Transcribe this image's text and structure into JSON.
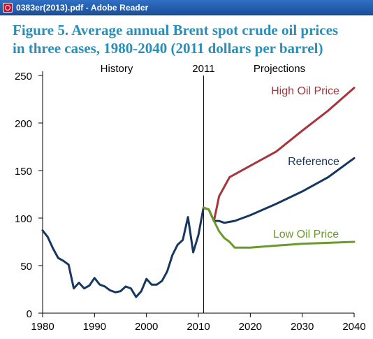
{
  "window": {
    "title": "0383er(2013).pdf - Adobe Reader",
    "icon": "pdf-document-icon"
  },
  "figure": {
    "title_line1": "Figure 5. Average annual Brent spot crude oil prices",
    "title_line2": "in three cases, 1980-2040 (2011 dollars per barrel)"
  },
  "chart_data": {
    "type": "line",
    "title": "Figure 5. Average annual Brent spot crude oil prices in three cases, 1980-2040 (2011 dollars per barrel)",
    "xlim": [
      1980,
      2040
    ],
    "ylim": [
      0,
      250
    ],
    "xticks": [
      1980,
      1990,
      2000,
      2010,
      2020,
      2030,
      2040
    ],
    "yticks": [
      0,
      50,
      100,
      150,
      200,
      250
    ],
    "grid": false,
    "annotations": {
      "history": "History",
      "divider_year_label": "2011",
      "divider_year": 2011,
      "projections": "Projections"
    },
    "series": [
      {
        "name": "History",
        "color": "#17375e",
        "x": [
          1980,
          1981,
          1982,
          1983,
          1984,
          1985,
          1986,
          1987,
          1988,
          1989,
          1990,
          1991,
          1992,
          1993,
          1994,
          1995,
          1996,
          1997,
          1998,
          1999,
          2000,
          2001,
          2002,
          2003,
          2004,
          2005,
          2006,
          2007,
          2008,
          2009,
          2010,
          2011
        ],
        "y": [
          87,
          80,
          68,
          58,
          55,
          51,
          26,
          32,
          26,
          29,
          37,
          30,
          28,
          24,
          22,
          23,
          28,
          26,
          17,
          23,
          36,
          30,
          30,
          34,
          44,
          61,
          72,
          77,
          101,
          64,
          82,
          111
        ]
      },
      {
        "name": "High Oil Price",
        "color": "#a8343c",
        "x": [
          2011,
          2012,
          2013,
          2014,
          2015,
          2016,
          2017,
          2020,
          2025,
          2030,
          2035,
          2040
        ],
        "y": [
          111,
          109,
          97,
          123,
          133,
          143,
          146,
          155,
          170,
          192,
          213,
          237
        ]
      },
      {
        "name": "Reference",
        "color": "#17375e",
        "x": [
          2011,
          2012,
          2013,
          2014,
          2015,
          2016,
          2017,
          2020,
          2025,
          2030,
          2035,
          2040
        ],
        "y": [
          111,
          109,
          97,
          97,
          95,
          96,
          97,
          103,
          115,
          128,
          143,
          163
        ]
      },
      {
        "name": "Low Oil Price",
        "color": "#6a9a2a",
        "x": [
          2011,
          2012,
          2013,
          2014,
          2015,
          2016,
          2017,
          2020,
          2025,
          2030,
          2035,
          2040
        ],
        "y": [
          111,
          109,
          97,
          86,
          79,
          75,
          69,
          69,
          71,
          73,
          74,
          75
        ]
      }
    ]
  }
}
